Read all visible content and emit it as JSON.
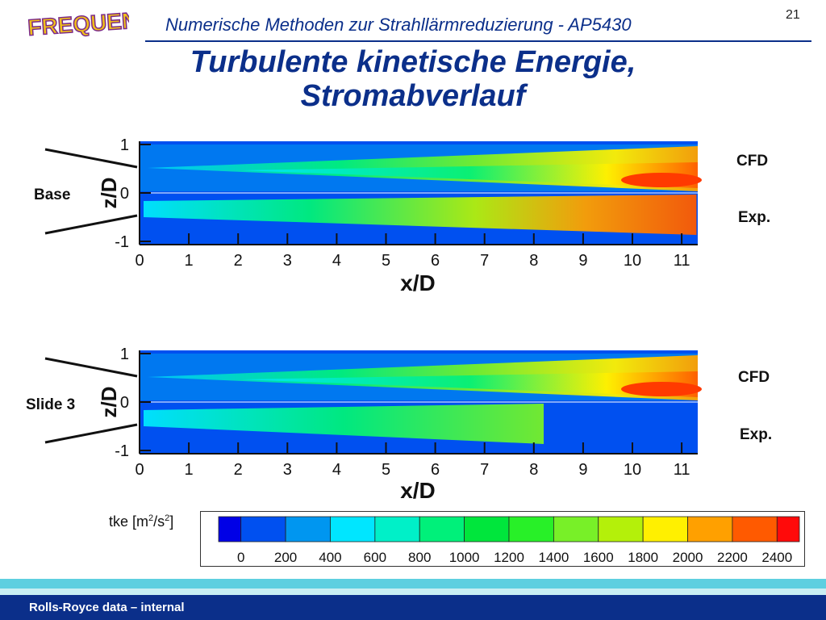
{
  "header": {
    "logo_text": "FREQUENZ",
    "subtitle": "Numerische Methoden zur Strahllärmreduzierung - AP5430",
    "page_number": "21"
  },
  "title_lines": [
    "Turbulente kinetische Energie,",
    "Stromabverlauf"
  ],
  "plots": [
    {
      "name": "Base",
      "row_labels": {
        "top": "CFD",
        "bottom": "Exp."
      },
      "ylabel": "z/D",
      "xlabel": "x/D",
      "yticks": [
        "1",
        "0",
        "-1"
      ],
      "xticks": [
        "0",
        "1",
        "2",
        "3",
        "4",
        "5",
        "6",
        "7",
        "8",
        "9",
        "10",
        "11"
      ],
      "exp_data_ends_at_x": 11.3
    },
    {
      "name": "Slide 3",
      "row_labels": {
        "top": "CFD",
        "bottom": "Exp."
      },
      "ylabel": "z/D",
      "xlabel": "x/D",
      "yticks": [
        "1",
        "0",
        "-1"
      ],
      "xticks": [
        "0",
        "1",
        "2",
        "3",
        "4",
        "5",
        "6",
        "7",
        "8",
        "9",
        "10",
        "11"
      ],
      "exp_data_ends_at_x": 8.2
    }
  ],
  "colorbar": {
    "variable": "tke",
    "unit_base": "m",
    "unit_exp": "2",
    "unit_sep": "/s",
    "tick_labels": [
      "0",
      "200",
      "400",
      "600",
      "800",
      "1000",
      "1200",
      "1400",
      "1600",
      "1800",
      "2000",
      "2200",
      "2400"
    ],
    "colors": [
      "#0000e6",
      "#0050f0",
      "#0096f0",
      "#00e6ff",
      "#00f0c8",
      "#00f07a",
      "#00e63c",
      "#28f028",
      "#78f028",
      "#b4f00a",
      "#fff000",
      "#ffa000",
      "#ff5a00",
      "#ff0a0a"
    ]
  },
  "footer": {
    "text": "Rolls-Royce data – internal"
  }
}
